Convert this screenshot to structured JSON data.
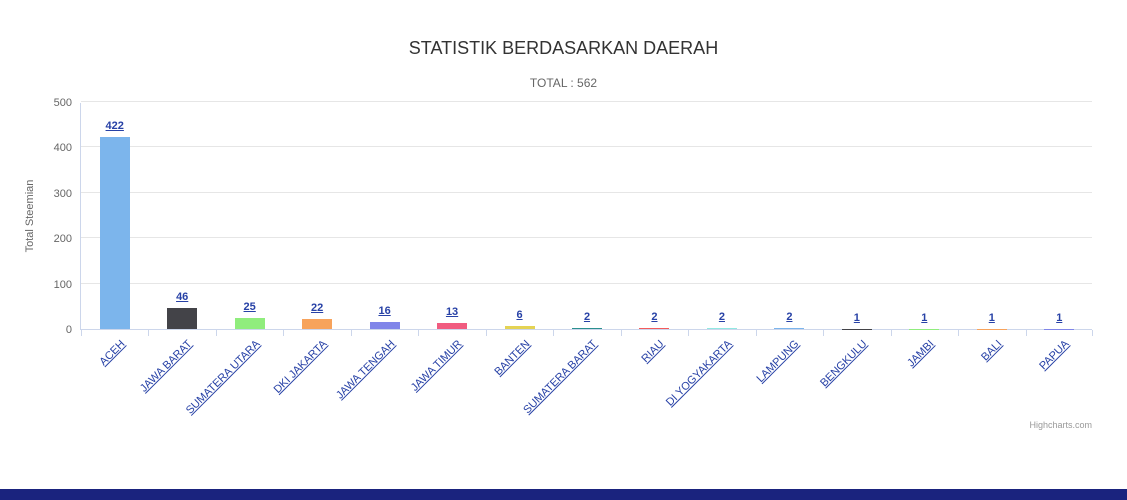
{
  "page": {
    "background": "#ffffff",
    "footer_color": "#1a237e"
  },
  "chart_data": {
    "type": "bar",
    "title": "STATISTIK BERDASARKAN DAERAH",
    "subtitle": "TOTAL : 562",
    "ylabel": "Total Steemian",
    "xlabel": "",
    "ylim": [
      0,
      500
    ],
    "yticks": [
      0,
      100,
      200,
      300,
      400,
      500
    ],
    "grid": true,
    "legend": false,
    "categories": [
      "ACEH",
      "JAWA BARAT",
      "SUMATERA UTARA",
      "DKI JAKARTA",
      "JAWA TENGAH",
      "JAWA TIMUR",
      "BANTEN",
      "SUMATERA BARAT",
      "RIAU",
      "DI YOGYAKARTA",
      "LAMPUNG",
      "BENGKULU",
      "JAMBI",
      "BALI",
      "PAPUA"
    ],
    "values": [
      422,
      46,
      25,
      22,
      16,
      13,
      6,
      2,
      2,
      2,
      2,
      1,
      1,
      1,
      1
    ],
    "palette": [
      "#7cb5ec",
      "#434348",
      "#90ed7d",
      "#f7a35c",
      "#8085e9",
      "#f15c80",
      "#e4d354",
      "#2b908f",
      "#f45b5b",
      "#91e8e1",
      "#7cb5ec",
      "#434348",
      "#90ed7d",
      "#f7a35c",
      "#8085e9"
    ],
    "label_color": "#2741a6",
    "grid_color": "#e6e6e6",
    "axis_color": "#ccd6eb",
    "credits": "Highcharts.com"
  }
}
